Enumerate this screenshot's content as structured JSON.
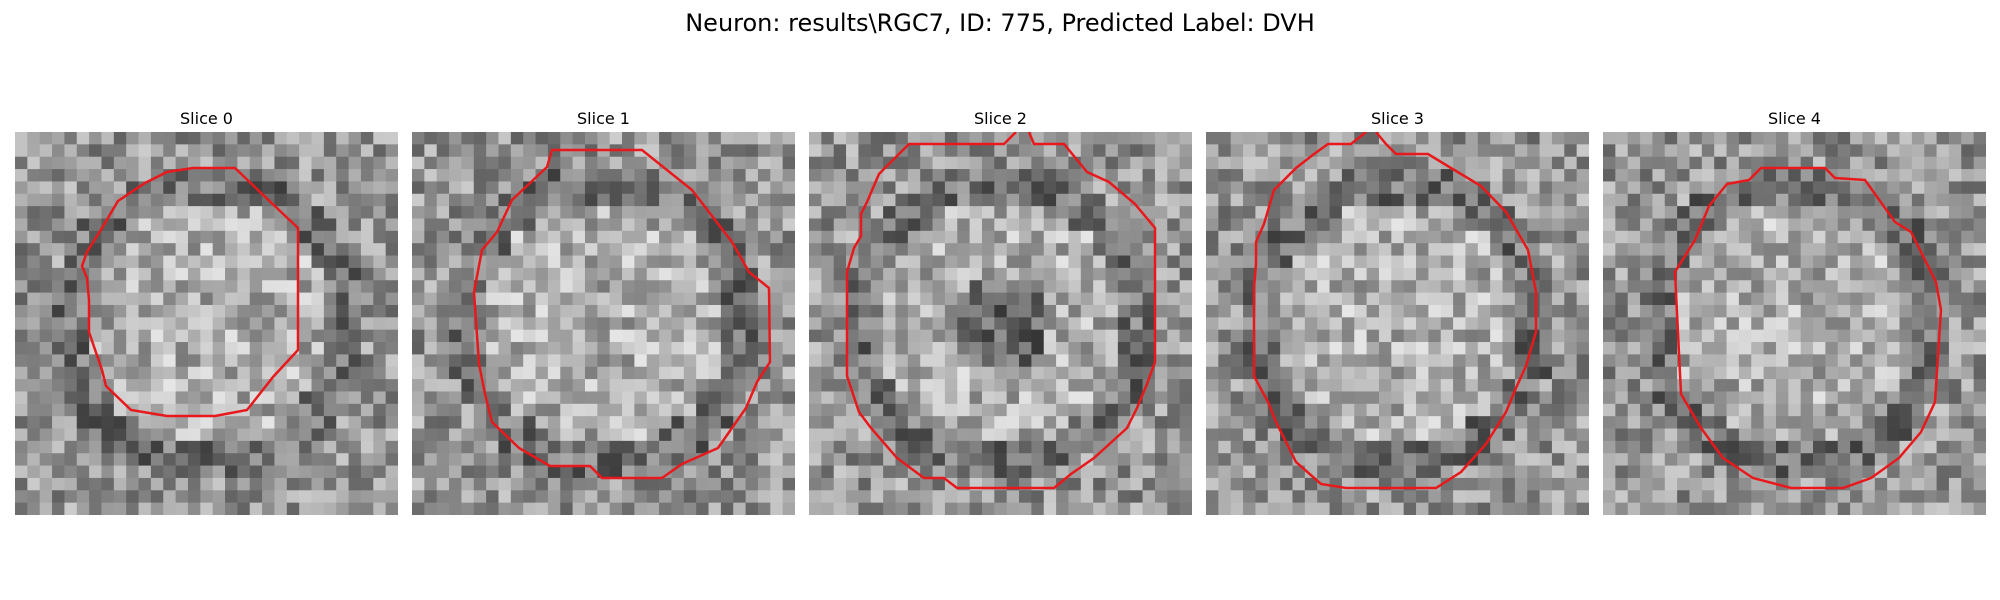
{
  "figure": {
    "title": "Neuron: results\\RGC7, ID: 775, Predicted Label: DVH"
  },
  "colors": {
    "contour": "#e8191c",
    "background": "#ffffff"
  },
  "panels": [
    {
      "title": "Slice 0"
    },
    {
      "title": "Slice 1"
    },
    {
      "title": "Slice 2"
    },
    {
      "title": "Slice 3"
    },
    {
      "title": "Slice 4"
    }
  ]
}
